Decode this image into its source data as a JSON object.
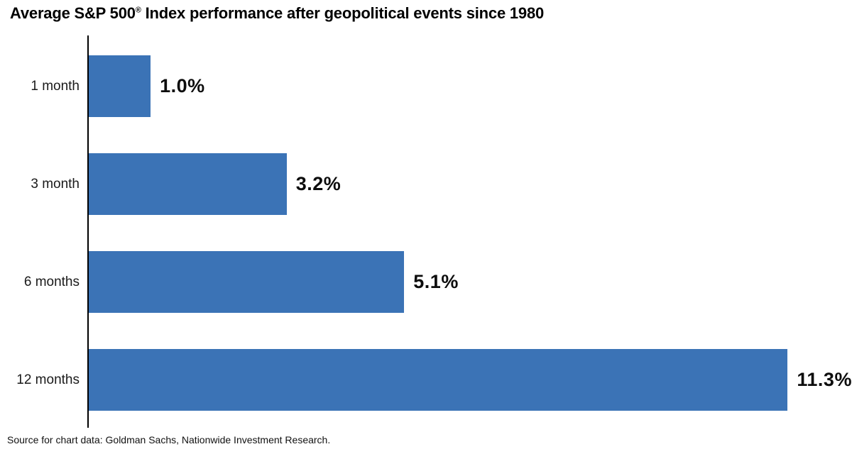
{
  "header": {
    "title_prefix": "Average S&P 500",
    "title_reg": "®",
    "title_suffix": " Index performance after geopolitical events since 1980"
  },
  "chart_data": {
    "type": "bar",
    "orientation": "horizontal",
    "title": "Average S&P 500® Index performance after geopolitical events since 1980",
    "categories": [
      "1 month",
      "3 month",
      "6 months",
      "12 months"
    ],
    "values": [
      1.0,
      3.2,
      5.1,
      11.3
    ],
    "value_labels": [
      "1.0%",
      "3.2%",
      "5.1%",
      "11.3%"
    ],
    "xlabel": "",
    "ylabel": "",
    "xlim": [
      0,
      12.34
    ],
    "grid": false,
    "legend": false,
    "bar_color": "#3B73B6",
    "axis_color": "#000000",
    "source": "Source for chart data: Goldman Sachs, Nationwide Investment Research."
  }
}
